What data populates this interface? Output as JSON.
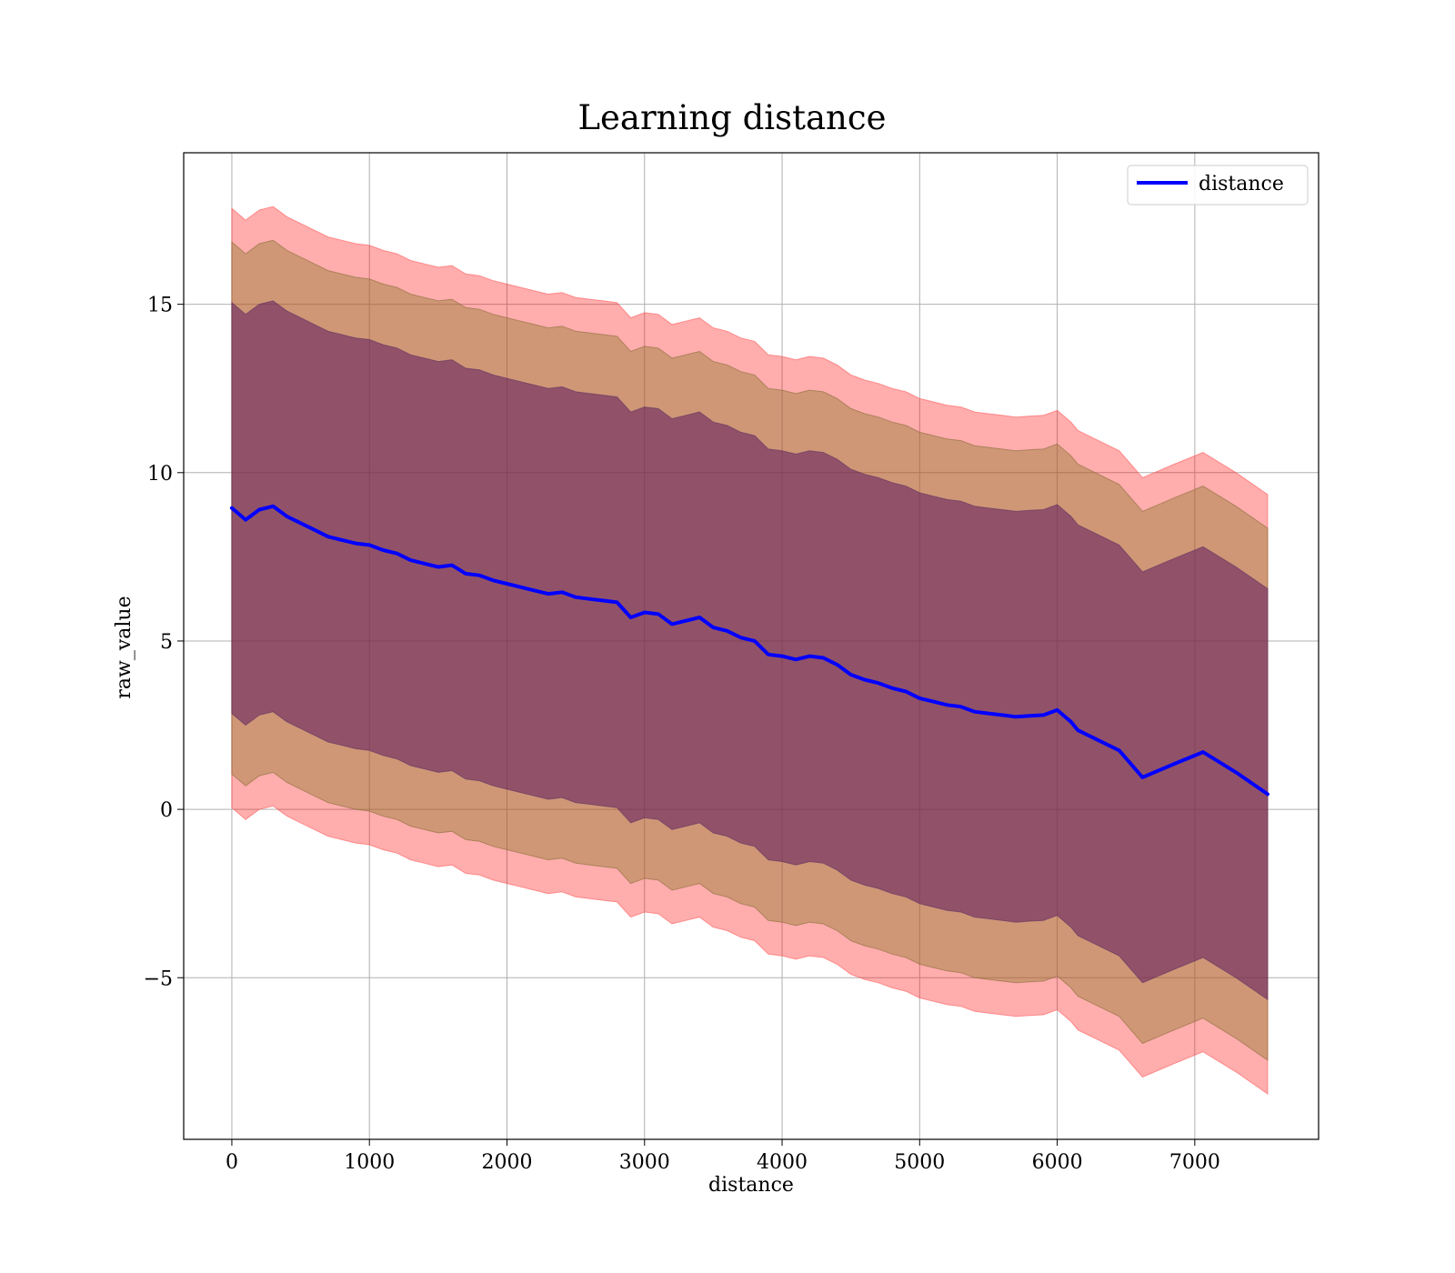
{
  "chart_data": {
    "type": "area",
    "title": "Learning distance",
    "xlabel": "distance",
    "ylabel": "raw_value",
    "xlim": [
      -350,
      7900
    ],
    "ylim": [
      -9.8,
      19.5
    ],
    "xticks": [
      0,
      1000,
      2000,
      3000,
      4000,
      5000,
      6000,
      7000
    ],
    "yticks": [
      -5,
      0,
      5,
      10,
      15
    ],
    "ytick_labels": [
      "−5",
      "0",
      "5",
      "10",
      "15"
    ],
    "grid": true,
    "legend": {
      "placement": "top-right",
      "entries": [
        "distance"
      ]
    },
    "colors": {
      "line": "#0000ff",
      "band_outer": "#ff0000",
      "band_mid": "#9c7a2e",
      "band_inner": "#5a1f5a"
    },
    "x": [
      0,
      100,
      200,
      300,
      400,
      500,
      600,
      700,
      800,
      900,
      1000,
      1100,
      1200,
      1300,
      1400,
      1500,
      1600,
      1700,
      1800,
      1900,
      2000,
      2100,
      2200,
      2300,
      2400,
      2500,
      2600,
      2700,
      2800,
      2900,
      3000,
      3100,
      3200,
      3300,
      3400,
      3500,
      3600,
      3700,
      3800,
      3900,
      4000,
      4100,
      4200,
      4300,
      4400,
      4500,
      4600,
      4700,
      4800,
      4900,
      5000,
      5100,
      5200,
      5300,
      5400,
      5500,
      5600,
      5700,
      5800,
      5900,
      6000,
      6100,
      6150,
      6300,
      6450,
      6620,
      6850,
      7060,
      7300,
      7530
    ],
    "series": [
      {
        "name": "distance",
        "values": [
          8.95,
          8.6,
          8.9,
          9.0,
          8.7,
          8.5,
          8.3,
          8.1,
          8.0,
          7.9,
          7.85,
          7.7,
          7.6,
          7.4,
          7.3,
          7.2,
          7.25,
          7.0,
          6.95,
          6.8,
          6.7,
          6.6,
          6.5,
          6.4,
          6.45,
          6.3,
          6.25,
          6.2,
          6.15,
          5.7,
          5.85,
          5.8,
          5.5,
          5.6,
          5.7,
          5.4,
          5.3,
          5.1,
          5.0,
          4.6,
          4.55,
          4.45,
          4.55,
          4.5,
          4.3,
          4.0,
          3.85,
          3.75,
          3.6,
          3.5,
          3.3,
          3.2,
          3.1,
          3.05,
          2.9,
          2.85,
          2.8,
          2.75,
          2.78,
          2.8,
          2.95,
          2.6,
          2.35,
          2.05,
          1.75,
          0.95,
          1.35,
          1.7,
          1.1,
          0.45
        ]
      }
    ],
    "bands": [
      {
        "name": "outer",
        "upper_offset": 8.9,
        "lower_offset": -8.9
      },
      {
        "name": "middle",
        "upper_offset": 7.9,
        "lower_offset": -7.9
      },
      {
        "name": "inner",
        "upper_offset": 6.1,
        "lower_offset": -6.1
      }
    ]
  }
}
